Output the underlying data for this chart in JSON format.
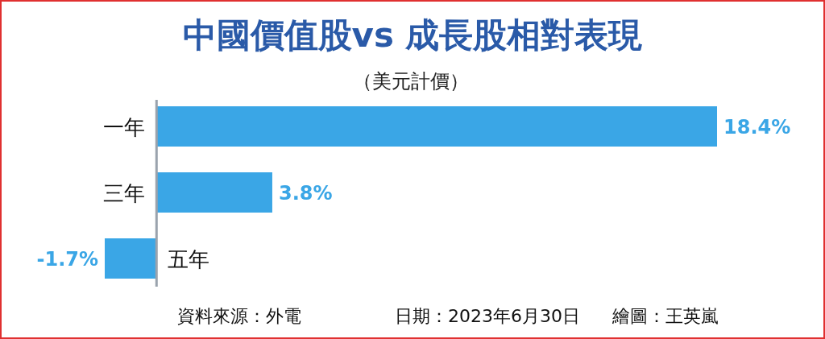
{
  "chart_data": {
    "type": "bar",
    "orientation": "horizontal",
    "title": "中國價值股vs 成長股相對表現",
    "subtitle": "（美元計價）",
    "categories": [
      "一年",
      "三年",
      "五年"
    ],
    "values": [
      18.4,
      3.8,
      -1.7
    ],
    "value_labels": [
      "18.4%",
      "3.8%",
      "-1.7%"
    ],
    "color": "#3aa6e6",
    "annotations": [
      "資料來源：外電",
      "日期：2023年6月30日",
      "繪圖：王英嵐"
    ]
  }
}
